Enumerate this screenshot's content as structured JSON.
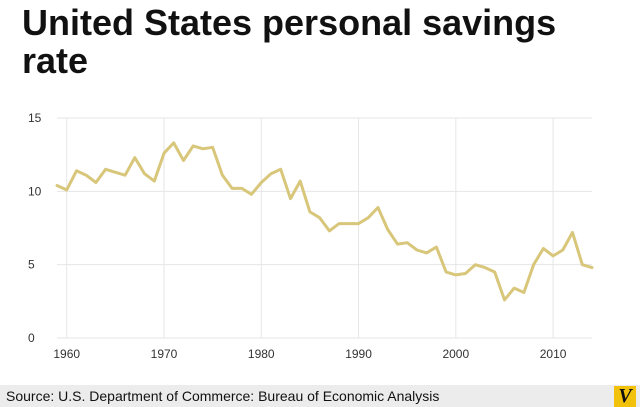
{
  "title": "United States personal savings rate",
  "source": "Source: U.S. Department of Commerce: Bureau of Economic Analysis",
  "colors": {
    "line": "#d8c67a",
    "grid": "#e6e6e6",
    "logo_bg": "#f2c10a"
  },
  "logo_icon": "vox-logo-icon",
  "chart_data": {
    "type": "line",
    "title": "United States personal savings rate",
    "xlabel": "",
    "ylabel": "",
    "xlim": [
      1959,
      2014
    ],
    "ylim": [
      0,
      15
    ],
    "yticks": [
      0,
      5,
      10,
      15
    ],
    "xticks": [
      1960,
      1970,
      1980,
      1990,
      2000,
      2010
    ],
    "grid": true,
    "series": [
      {
        "x": [
          1959,
          1960,
          1961,
          1962,
          1963,
          1964,
          1965,
          1966,
          1967,
          1968,
          1969,
          1970,
          1971,
          1972,
          1973,
          1974,
          1975,
          1976,
          1977,
          1978,
          1979,
          1980,
          1981,
          1982,
          1983,
          1984,
          1985,
          1986,
          1987,
          1988,
          1989,
          1990,
          1991,
          1992,
          1993,
          1994,
          1995,
          1996,
          1997,
          1998,
          1999,
          2000,
          2001,
          2002,
          2003,
          2004,
          2005,
          2006,
          2007,
          2008,
          2009,
          2010,
          2011,
          2012,
          2013,
          2014
        ],
        "y": [
          10.4,
          10.1,
          11.4,
          11.1,
          10.6,
          11.5,
          11.3,
          11.1,
          12.3,
          11.2,
          10.7,
          12.6,
          13.3,
          12.1,
          13.1,
          12.9,
          13.0,
          11.1,
          10.2,
          10.2,
          9.8,
          10.6,
          11.2,
          11.5,
          9.5,
          10.7,
          8.6,
          8.2,
          7.3,
          7.8,
          7.8,
          7.8,
          8.2,
          8.9,
          7.4,
          6.4,
          6.5,
          6.0,
          5.8,
          6.2,
          4.5,
          4.3,
          4.4,
          5.0,
          4.8,
          4.5,
          2.6,
          3.4,
          3.1,
          5.0,
          6.1,
          5.6,
          6.0,
          7.2,
          5.0,
          4.8
        ]
      }
    ]
  }
}
